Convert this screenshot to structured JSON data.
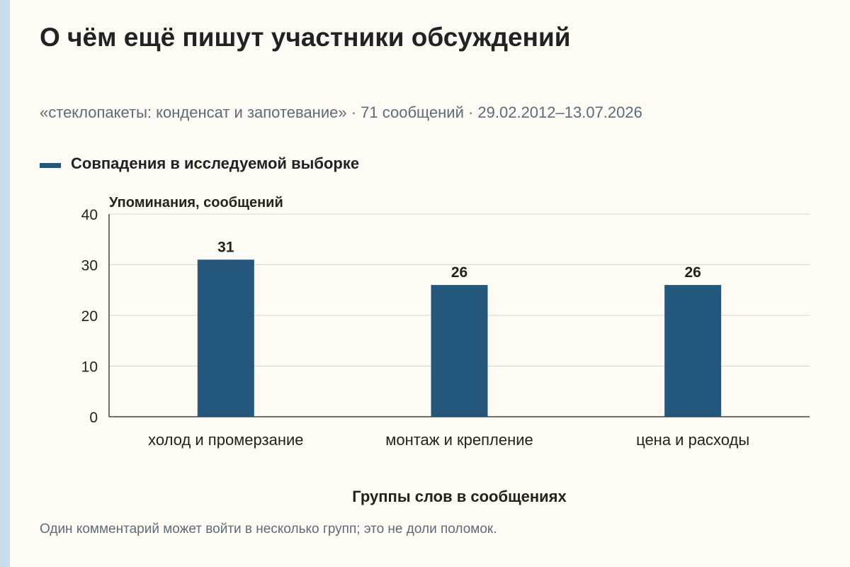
{
  "title": "О чём ещё пишут участники обсуждений",
  "subtitle": "«стеклопакеты: конденсат и запотевание» · 71 сообщений · 29.02.2012–13.07.2026",
  "legend": {
    "label": "Совпадения в исследуемой выборке",
    "color": "#24577c"
  },
  "footnote": "Один комментарий может войти в несколько групп; это не доли поломок.",
  "chart_data": {
    "type": "bar",
    "categories": [
      "холод и промерзание",
      "монтаж и крепление",
      "цена и расходы"
    ],
    "series": [
      {
        "name": "Совпадения в исследуемой выборке",
        "values": [
          31,
          26,
          26
        ],
        "color": "#24577c"
      }
    ],
    "ylabel": "Упоминания, сообщений",
    "xlabel": "Группы слов в сообщениях",
    "ylim": [
      0,
      40
    ],
    "yticks": [
      0,
      10,
      20,
      30,
      40
    ],
    "grid": true,
    "data_labels": [
      "31",
      "26",
      "26"
    ],
    "legend_position": "top-left"
  }
}
